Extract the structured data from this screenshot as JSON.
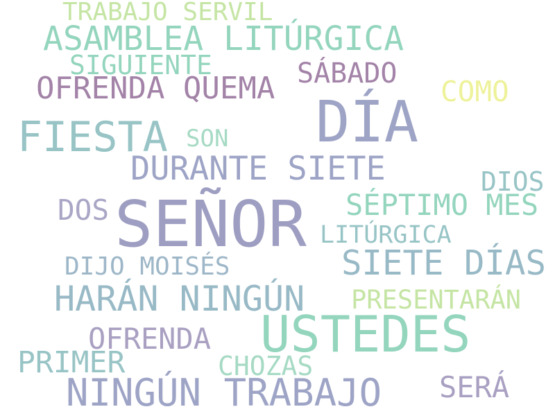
{
  "words": [
    {
      "id": "w-trabajo-servil",
      "text": "TRABAJO SERVIL",
      "color": "#c5e5a4"
    },
    {
      "id": "w-asamblea-liturgica",
      "text": "ASAMBLEA LITÚRGICA",
      "color": "#94d5bd"
    },
    {
      "id": "w-siguiente",
      "text": "SIGUIENTE",
      "color": "#94d5bd"
    },
    {
      "id": "w-sabado",
      "text": "SÁBADO",
      "color": "#a383a8"
    },
    {
      "id": "w-ofrenda-quema",
      "text": "OFRENDA QUEMA",
      "color": "#a383a8"
    },
    {
      "id": "w-como",
      "text": "COMO",
      "color": "#eef29a"
    },
    {
      "id": "w-dia",
      "text": "DÍA",
      "color": "#9ea4c6"
    },
    {
      "id": "w-fiesta",
      "text": "FIESTA",
      "color": "#98c4c6"
    },
    {
      "id": "w-son",
      "text": "SON",
      "color": "#a6dac4"
    },
    {
      "id": "w-durante-siete",
      "text": "DURANTE SIETE",
      "color": "#9ea4c6"
    },
    {
      "id": "w-dios",
      "text": "DIOS",
      "color": "#98c4c6"
    },
    {
      "id": "w-dos",
      "text": "DOS",
      "color": "#a9a6c6"
    },
    {
      "id": "w-senor",
      "text": "SEÑOR",
      "color": "#9e9ec2"
    },
    {
      "id": "w-septimo-mes",
      "text": "SÉPTIMO MES",
      "color": "#94d5bd"
    },
    {
      "id": "w-liturgica",
      "text": "LITÚRGICA",
      "color": "#98c4c6"
    },
    {
      "id": "w-dijo-moises",
      "text": "DIJO MOISÉS",
      "color": "#9eb7c8"
    },
    {
      "id": "w-siete-dias",
      "text": "SIETE DÍAS",
      "color": "#98b9c6"
    },
    {
      "id": "w-haran-ningun",
      "text": "HARÁN NINGÚN",
      "color": "#98b9c6"
    },
    {
      "id": "w-presentaran",
      "text": "PRESENTARÁN",
      "color": "#c5e5a4"
    },
    {
      "id": "w-ustedes",
      "text": "USTEDES",
      "color": "#94d5bd"
    },
    {
      "id": "w-ofrenda",
      "text": "OFRENDA",
      "color": "#a9a0c2"
    },
    {
      "id": "w-primer",
      "text": "PRIMER",
      "color": "#98c4c6"
    },
    {
      "id": "w-chozas",
      "text": "CHOZAS",
      "color": "#a6dac4"
    },
    {
      "id": "w-ningun-trabajo",
      "text": "NINGÚN TRABAJO",
      "color": "#9ea4c6"
    },
    {
      "id": "w-sera",
      "text": "SERÁ",
      "color": "#a9a0c2"
    }
  ]
}
